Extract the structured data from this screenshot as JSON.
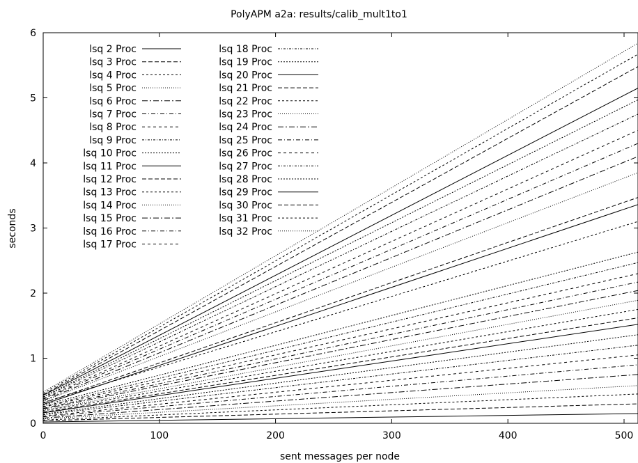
{
  "chart_data": {
    "type": "line",
    "title": "PolyAPM a2a: results/calib_mult1to1",
    "xlabel": "sent messages per node",
    "ylabel": "seconds",
    "xlim": [
      0,
      512
    ],
    "ylim": [
      0,
      6
    ],
    "xticks": [
      0,
      100,
      200,
      300,
      400,
      500
    ],
    "yticks": [
      0,
      1,
      2,
      3,
      4,
      5,
      6
    ],
    "grid": false,
    "legend_position": "top-left",
    "series": [
      {
        "name": "lsq 2 Proc",
        "dash": "",
        "x": [
          0,
          512
        ],
        "y": [
          0.02,
          0.15
        ]
      },
      {
        "name": "lsq 3 Proc",
        "dash": "6 3",
        "x": [
          0,
          512
        ],
        "y": [
          0.04,
          0.3
        ]
      },
      {
        "name": "lsq 4 Proc",
        "dash": "3 3",
        "x": [
          0,
          512
        ],
        "y": [
          0.05,
          0.45
        ]
      },
      {
        "name": "lsq 5 Proc",
        "dash": "1 2",
        "x": [
          0,
          512
        ],
        "y": [
          0.07,
          0.58
        ]
      },
      {
        "name": "lsq 6 Proc",
        "dash": "8 3 2 3",
        "x": [
          0,
          512
        ],
        "y": [
          0.08,
          0.75
        ]
      },
      {
        "name": "lsq 7 Proc",
        "dash": "6 3 1 3",
        "x": [
          0,
          512
        ],
        "y": [
          0.1,
          0.9
        ]
      },
      {
        "name": "lsq 8 Proc",
        "dash": "4 4",
        "x": [
          0,
          512
        ],
        "y": [
          0.11,
          1.05
        ]
      },
      {
        "name": "lsq 9 Proc",
        "dash": "3 2 1 2",
        "x": [
          0,
          512
        ],
        "y": [
          0.13,
          1.2
        ]
      },
      {
        "name": "lsq 10 Proc",
        "dash": "2 2",
        "x": [
          0,
          512
        ],
        "y": [
          0.14,
          1.36
        ]
      },
      {
        "name": "lsq 11 Proc",
        "dash": "",
        "x": [
          0,
          512
        ],
        "y": [
          0.16,
          1.52
        ]
      },
      {
        "name": "lsq 12 Proc",
        "dash": "6 3",
        "x": [
          0,
          512
        ],
        "y": [
          0.17,
          1.62
        ]
      },
      {
        "name": "lsq 13 Proc",
        "dash": "3 3",
        "x": [
          0,
          512
        ],
        "y": [
          0.19,
          1.75
        ]
      },
      {
        "name": "lsq 14 Proc",
        "dash": "1 2",
        "x": [
          0,
          512
        ],
        "y": [
          0.2,
          1.89
        ]
      },
      {
        "name": "lsq 15 Proc",
        "dash": "8 3 2 3",
        "x": [
          0,
          512
        ],
        "y": [
          0.22,
          2.04
        ]
      },
      {
        "name": "lsq 16 Proc",
        "dash": "6 3 1 3",
        "x": [
          0,
          512
        ],
        "y": [
          0.23,
          2.17
        ]
      },
      {
        "name": "lsq 17 Proc",
        "dash": "4 4",
        "x": [
          0,
          512
        ],
        "y": [
          0.25,
          2.3
        ]
      },
      {
        "name": "lsq 18 Proc",
        "dash": "3 2 1 2",
        "x": [
          0,
          512
        ],
        "y": [
          0.26,
          2.47
        ]
      },
      {
        "name": "lsq 19 Proc",
        "dash": "2 2",
        "x": [
          0,
          512
        ],
        "y": [
          0.28,
          2.63
        ]
      },
      {
        "name": "lsq 20 Proc",
        "dash": "",
        "x": [
          0,
          512
        ],
        "y": [
          0.29,
          3.36
        ]
      },
      {
        "name": "lsq 21 Proc",
        "dash": "6 3",
        "x": [
          0,
          512
        ],
        "y": [
          0.31,
          3.47
        ]
      },
      {
        "name": "lsq 22 Proc",
        "dash": "3 3",
        "x": [
          0,
          512
        ],
        "y": [
          0.32,
          3.1
        ]
      },
      {
        "name": "lsq 23 Proc",
        "dash": "1 2",
        "x": [
          0,
          512
        ],
        "y": [
          0.34,
          3.85
        ]
      },
      {
        "name": "lsq 24 Proc",
        "dash": "8 3 2 3",
        "x": [
          0,
          512
        ],
        "y": [
          0.35,
          4.1
        ]
      },
      {
        "name": "lsq 25 Proc",
        "dash": "6 3 1 3",
        "x": [
          0,
          512
        ],
        "y": [
          0.37,
          4.3
        ]
      },
      {
        "name": "lsq 26 Proc",
        "dash": "4 4",
        "x": [
          0,
          512
        ],
        "y": [
          0.38,
          4.5
        ]
      },
      {
        "name": "lsq 27 Proc",
        "dash": "3 2 1 2",
        "x": [
          0,
          512
        ],
        "y": [
          0.4,
          4.75
        ]
      },
      {
        "name": "lsq 28 Proc",
        "dash": "2 2",
        "x": [
          0,
          512
        ],
        "y": [
          0.41,
          4.97
        ]
      },
      {
        "name": "lsq 29 Proc",
        "dash": "",
        "x": [
          0,
          512
        ],
        "y": [
          0.43,
          5.15
        ]
      },
      {
        "name": "lsq 30 Proc",
        "dash": "6 3",
        "x": [
          0,
          512
        ],
        "y": [
          0.44,
          5.48
        ]
      },
      {
        "name": "lsq 31 Proc",
        "dash": "3 3",
        "x": [
          0,
          512
        ],
        "y": [
          0.46,
          5.67
        ]
      },
      {
        "name": "lsq 32 Proc",
        "dash": "1 2",
        "x": [
          0,
          512
        ],
        "y": [
          0.48,
          5.84
        ]
      }
    ]
  }
}
